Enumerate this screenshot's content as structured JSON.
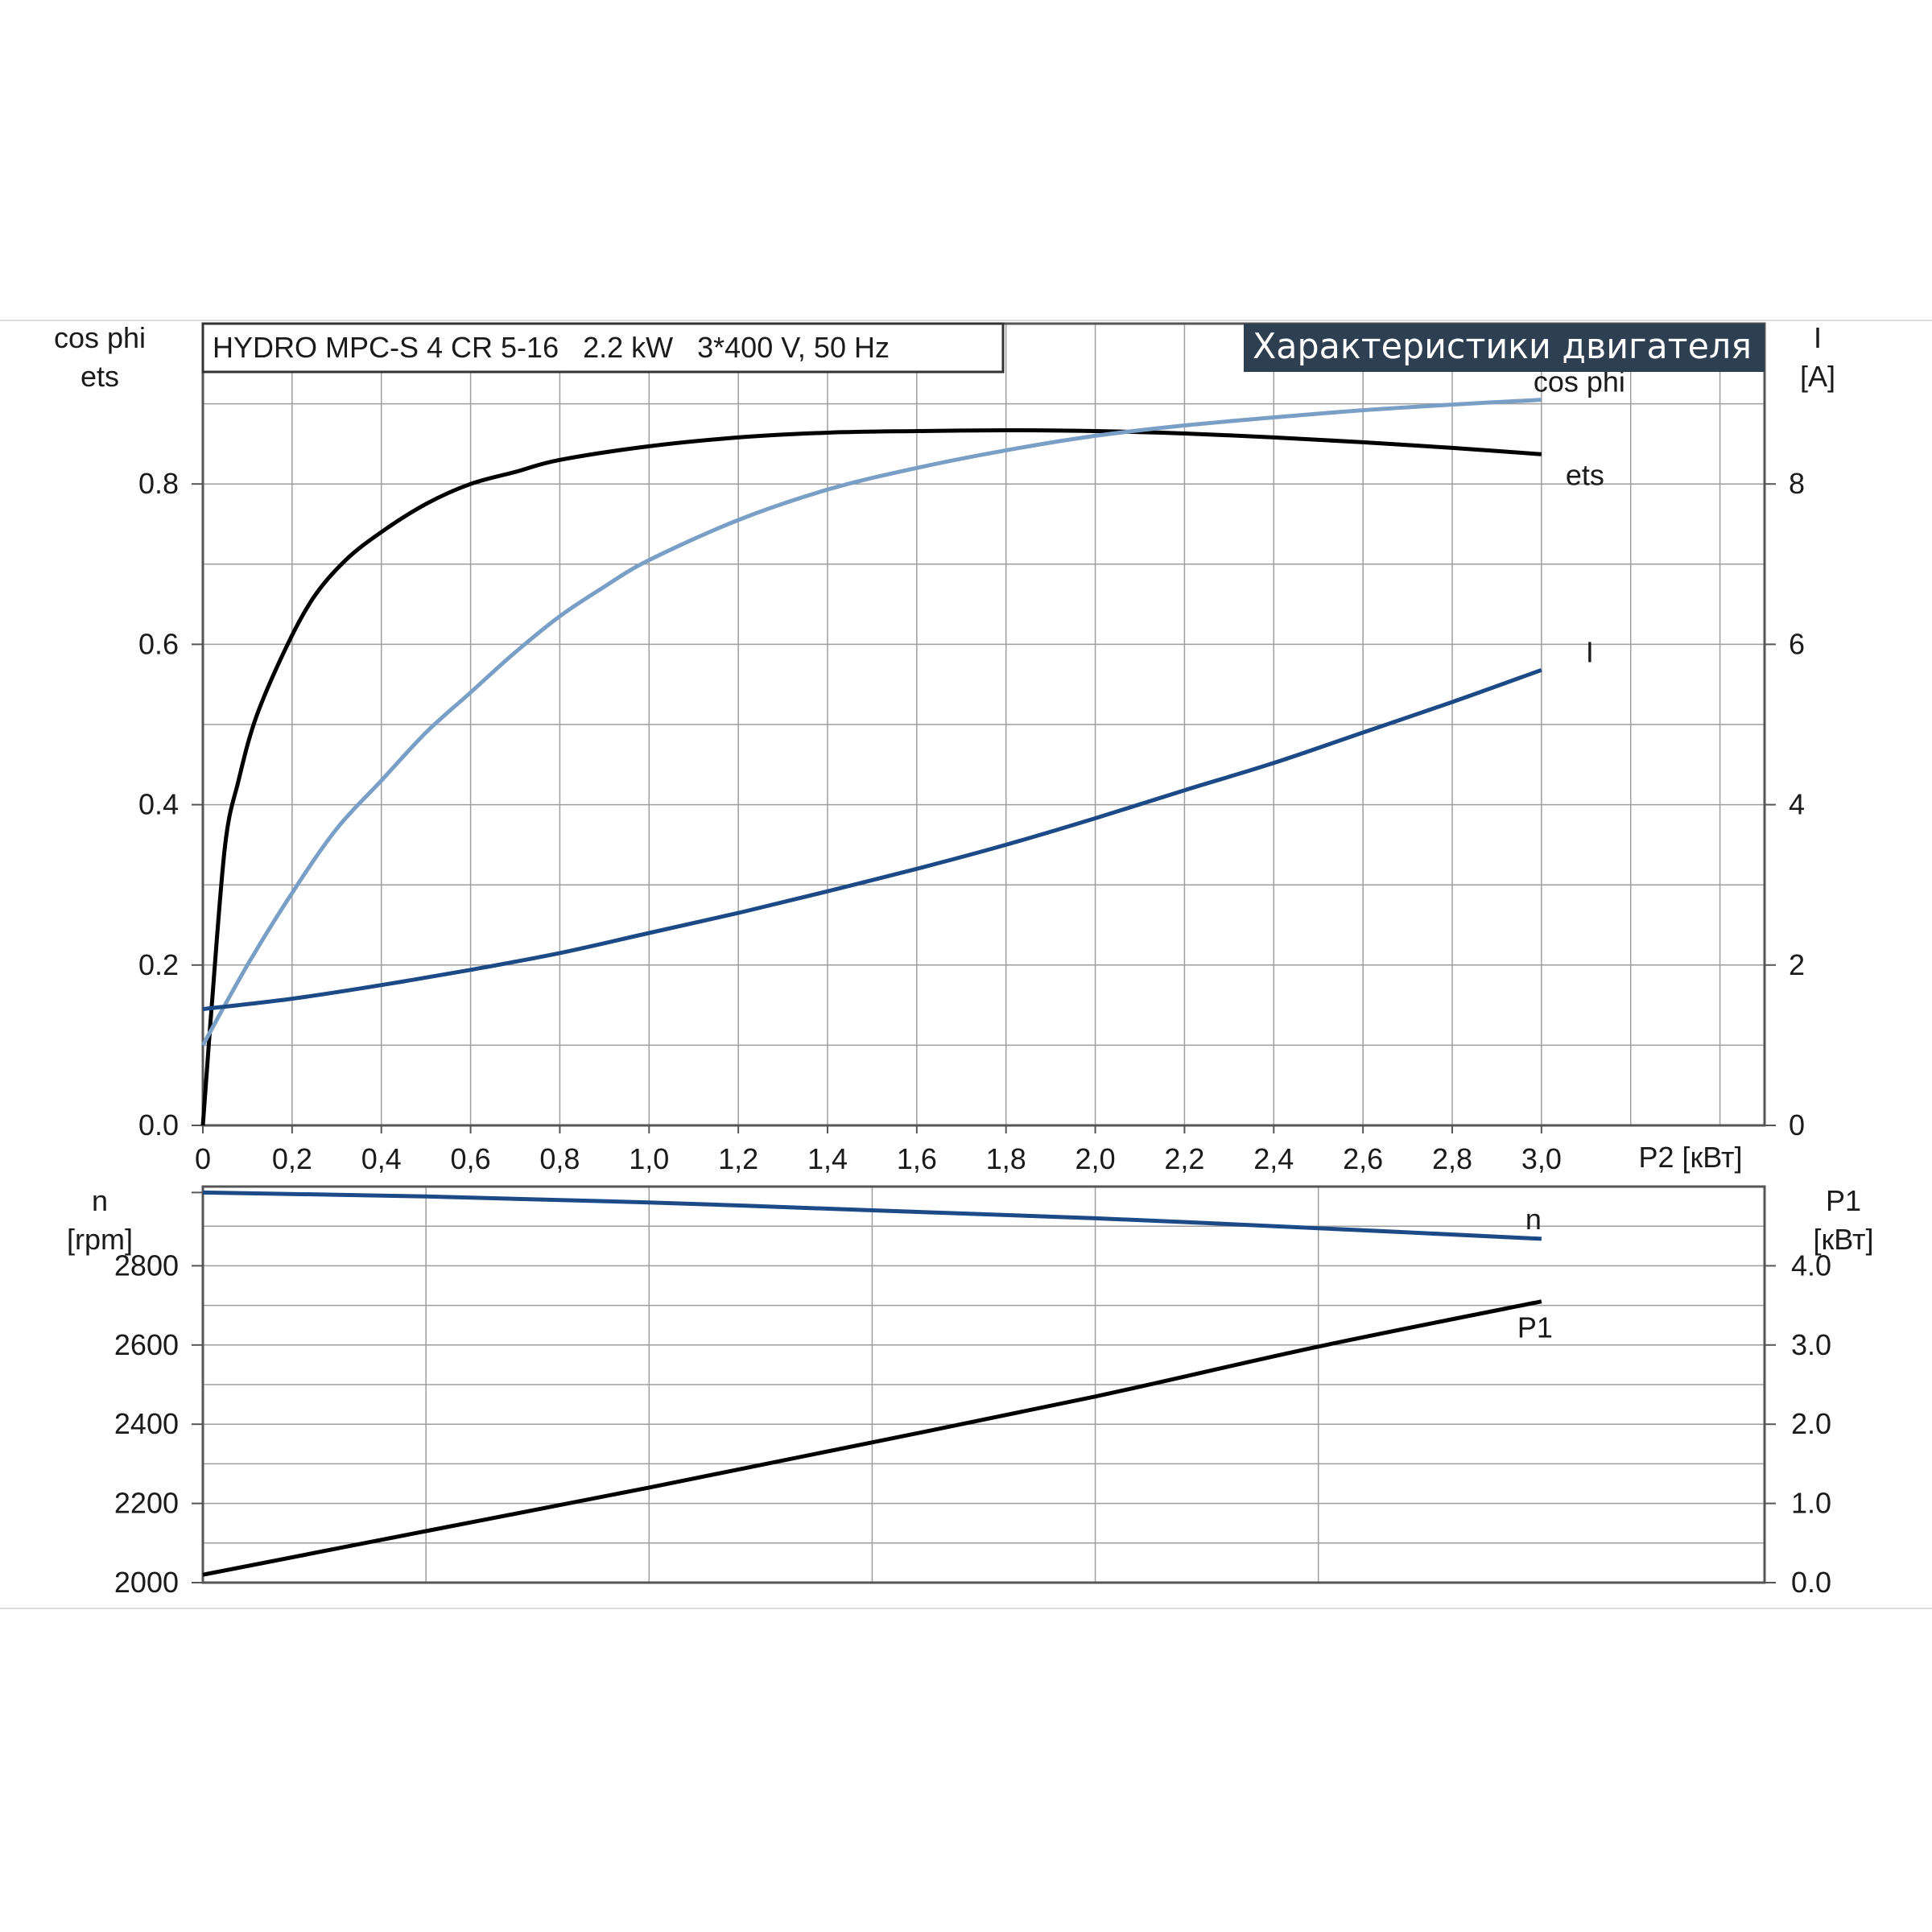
{
  "title_box": "HYDRO MPC-S 4 CR 5-16   2.2 kW   3*400 V, 50 Hz",
  "header_badge": "Характеристики двигателя",
  "colors": {
    "ets": "#000000",
    "cos_phi": "#7a9fc7",
    "current": "#1b4a86",
    "speed": "#1b4a86",
    "p1": "#000000",
    "badge_bg": "#2f3f52",
    "grid": "#9e9e9e"
  },
  "chart_data": [
    {
      "type": "line",
      "name": "upper",
      "x_label": "P2 [кВт]",
      "x_ticks": [
        "0",
        "0,2",
        "0,4",
        "0,6",
        "0,8",
        "1,0",
        "1,2",
        "1,4",
        "1,6",
        "1,8",
        "2,0",
        "2,2",
        "2,4",
        "2,6",
        "2,8",
        "3,0"
      ],
      "xlim": [
        0,
        3.5
      ],
      "left_axis_label": [
        "cos phi",
        "ets"
      ],
      "left_ticks": [
        "0.0",
        "0.2",
        "0.4",
        "0.6",
        "0.8"
      ],
      "ylim_left": [
        0,
        1.0
      ],
      "right_axis_label": [
        "I",
        "[A]"
      ],
      "right_ticks": [
        "0",
        "2",
        "4",
        "6",
        "8"
      ],
      "ylim_right": [
        0,
        10
      ],
      "grid": true,
      "series": [
        {
          "name": "ets",
          "axis": "left",
          "color_key": "ets",
          "x": [
            0,
            0.02,
            0.05,
            0.08,
            0.12,
            0.19,
            0.25,
            0.32,
            0.4,
            0.5,
            0.6,
            0.7,
            0.8,
            1.0,
            1.2,
            1.4,
            1.6,
            1.8,
            2.0,
            2.2,
            2.4,
            2.6,
            2.8,
            3.0
          ],
          "y": [
            0.0,
            0.15,
            0.35,
            0.43,
            0.51,
            0.6,
            0.66,
            0.705,
            0.74,
            0.775,
            0.8,
            0.815,
            0.83,
            0.847,
            0.858,
            0.864,
            0.866,
            0.867,
            0.866,
            0.863,
            0.858,
            0.852,
            0.845,
            0.837
          ]
        },
        {
          "name": "cos phi",
          "axis": "left",
          "color_key": "cos_phi",
          "x": [
            0,
            0.1,
            0.2,
            0.3,
            0.4,
            0.5,
            0.6,
            0.7,
            0.8,
            0.9,
            1.0,
            1.2,
            1.4,
            1.6,
            1.8,
            2.0,
            2.2,
            2.4,
            2.6,
            2.8,
            3.0
          ],
          "y": [
            0.1,
            0.2,
            0.29,
            0.37,
            0.43,
            0.49,
            0.54,
            0.59,
            0.635,
            0.672,
            0.705,
            0.755,
            0.793,
            0.82,
            0.842,
            0.86,
            0.873,
            0.883,
            0.892,
            0.899,
            0.905
          ]
        },
        {
          "name": "I",
          "axis": "right",
          "color_key": "current",
          "x": [
            0,
            0.2,
            0.4,
            0.6,
            0.8,
            1.0,
            1.2,
            1.4,
            1.6,
            1.8,
            2.0,
            2.2,
            2.4,
            2.6,
            2.8,
            3.0
          ],
          "y": [
            1.45,
            1.58,
            1.75,
            1.94,
            2.15,
            2.4,
            2.65,
            2.92,
            3.2,
            3.5,
            3.83,
            4.18,
            4.52,
            4.9,
            5.28,
            5.68
          ]
        }
      ]
    },
    {
      "type": "line",
      "name": "lower",
      "xlim": [
        0,
        3.5
      ],
      "left_axis_label": [
        "n",
        "[rpm]"
      ],
      "left_ticks": [
        "2000",
        "2200",
        "2400",
        "2600",
        "2800"
      ],
      "ylim_left": [
        2000,
        3000
      ],
      "right_axis_label": [
        "P1",
        "[кВт]"
      ],
      "right_ticks": [
        "0.0",
        "1.0",
        "2.0",
        "3.0",
        "4.0"
      ],
      "ylim_right": [
        0,
        5
      ],
      "grid": true,
      "series": [
        {
          "name": "n",
          "axis": "left",
          "color_key": "speed",
          "x": [
            0,
            0.5,
            1.0,
            1.5,
            2.0,
            2.5,
            3.0
          ],
          "y": [
            2985,
            2975,
            2960,
            2940,
            2920,
            2895,
            2868
          ]
        },
        {
          "name": "P1",
          "axis": "right",
          "color_key": "p1",
          "x": [
            0,
            0.5,
            1.0,
            1.5,
            2.0,
            2.5,
            3.0
          ],
          "y": [
            0.1,
            0.65,
            1.2,
            1.77,
            2.35,
            2.98,
            3.55
          ]
        }
      ]
    }
  ]
}
